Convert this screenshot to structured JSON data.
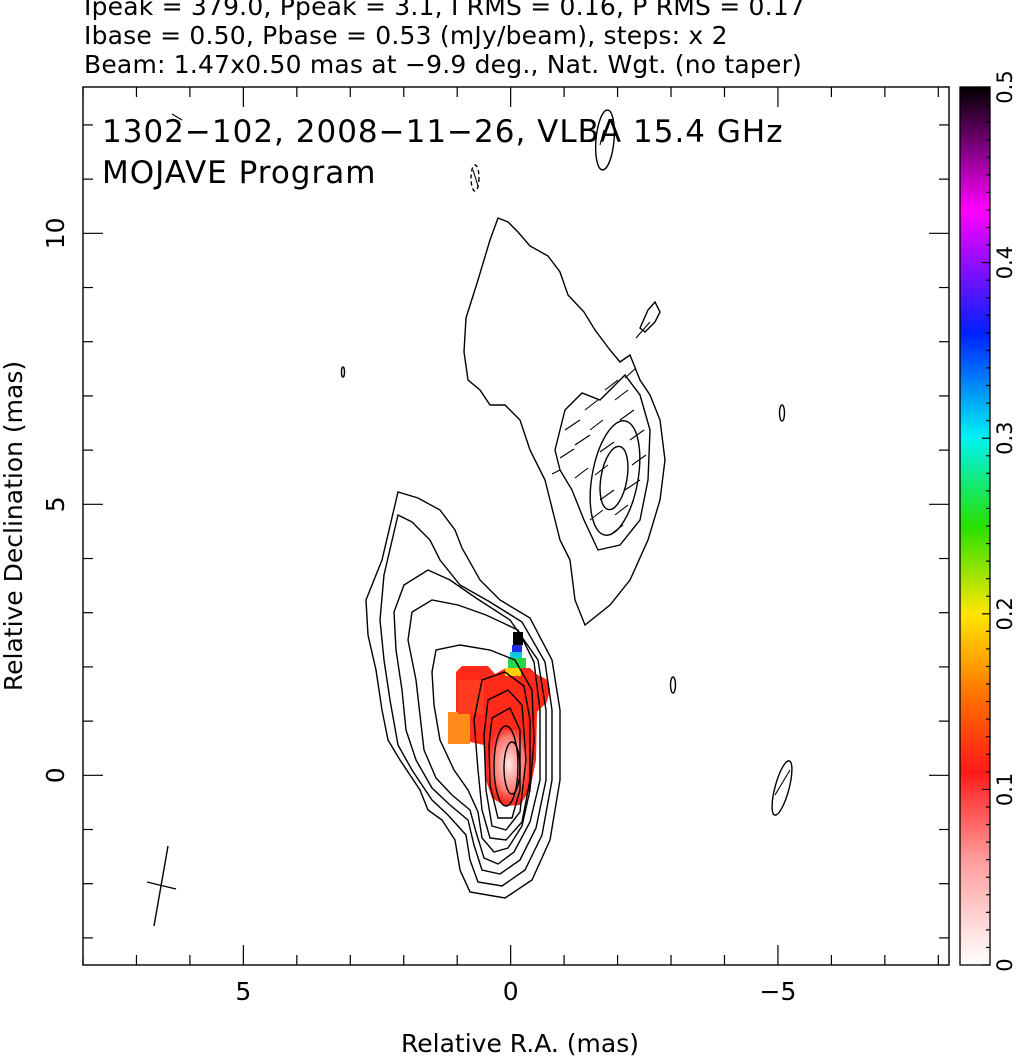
{
  "header": {
    "line1": "Ipeak = 379.0, Ppeak = 3.1, I RMS = 0.16, P RMS = 0.17",
    "line2": "Ibase = 0.50, Pbase = 0.53 (mJy/beam), steps: x 2",
    "line3": "Beam: 1.47x0.50 mas at −9.9 deg., Nat. Wgt. (no taper)"
  },
  "chart_data": {
    "type": "contour",
    "title": "1302−102, 2008−11−26, VLBA 15.4 GHz",
    "subtitle": "MOJAVE Program",
    "xlabel": "Relative R.A. (mas)",
    "ylabel": "Relative Declination (mas)",
    "xlim": [
      8.0,
      -8.2
    ],
    "ylim": [
      -3.5,
      12.7
    ],
    "x_ticks": [
      5,
      0,
      -5
    ],
    "x_tick_labels": [
      "5",
      "0",
      "−5"
    ],
    "y_ticks": [
      0,
      5,
      10
    ],
    "y_tick_labels": [
      "0",
      "5",
      "10"
    ],
    "colorbar": {
      "min": 0,
      "max": 0.5,
      "ticks": [
        0,
        0.1,
        0.2,
        0.3,
        0.4,
        0.5
      ],
      "tick_labels": [
        "0",
        "0.1",
        "0.2",
        "0.3",
        "0.4",
        "0.5"
      ],
      "colors": [
        "#ffffff",
        "#ff9999",
        "#ff0000",
        "#ff8800",
        "#ffff00",
        "#00ff00",
        "#00ffff",
        "#0000ff",
        "#ff00ff",
        "#000000"
      ]
    },
    "core": {
      "x": 0.0,
      "y": 0.1
    },
    "contour_levels_mJy_beam": [
      0.5,
      1,
      2,
      4,
      8,
      16,
      32,
      64,
      128,
      256
    ],
    "beam": {
      "major_mas": 1.47,
      "minor_mas": 0.5,
      "pa_deg": -9.9,
      "center": [
        6.5,
        -2.0
      ]
    }
  }
}
